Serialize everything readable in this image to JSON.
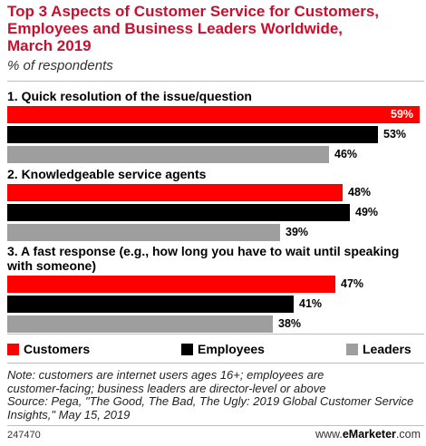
{
  "title": "Top 3 Aspects of Customer Service for Customers,\nEmployees and Business Leaders Worldwide,\nMarch 2019",
  "subtitle": "% of respondents",
  "chart_data": {
    "type": "bar",
    "orientation": "horizontal",
    "categories": [
      "1. Quick resolution of the issue/question",
      "2. Knowledgeable service agents",
      "3. A fast response (e.g., how long you have to wait until speaking\nwith someone)"
    ],
    "series": [
      {
        "name": "Customers",
        "color": "#ff0000",
        "values": [
          59,
          48,
          47
        ]
      },
      {
        "name": "Employees",
        "color": "#000000",
        "values": [
          53,
          49,
          41
        ]
      },
      {
        "name": "Leaders",
        "color": "#9e9e9e",
        "values": [
          46,
          39,
          38
        ]
      }
    ],
    "value_suffix": "%",
    "xlim": [
      0,
      59
    ],
    "legend_position": "bottom",
    "grid": false
  },
  "note": "Note: customers are internet users ages 16+; employees are\ncustomer-facing; business leaders are director-level or above\nSource: Pega, \"The Good, The Bad, The Ugly: 2019 Global Customer Service\nInsights,\" May 15, 2019",
  "footer": {
    "chart_id": "247470",
    "site_prefix": "www.",
    "site_brand": "eMarketer",
    "site_suffix": ".com"
  }
}
